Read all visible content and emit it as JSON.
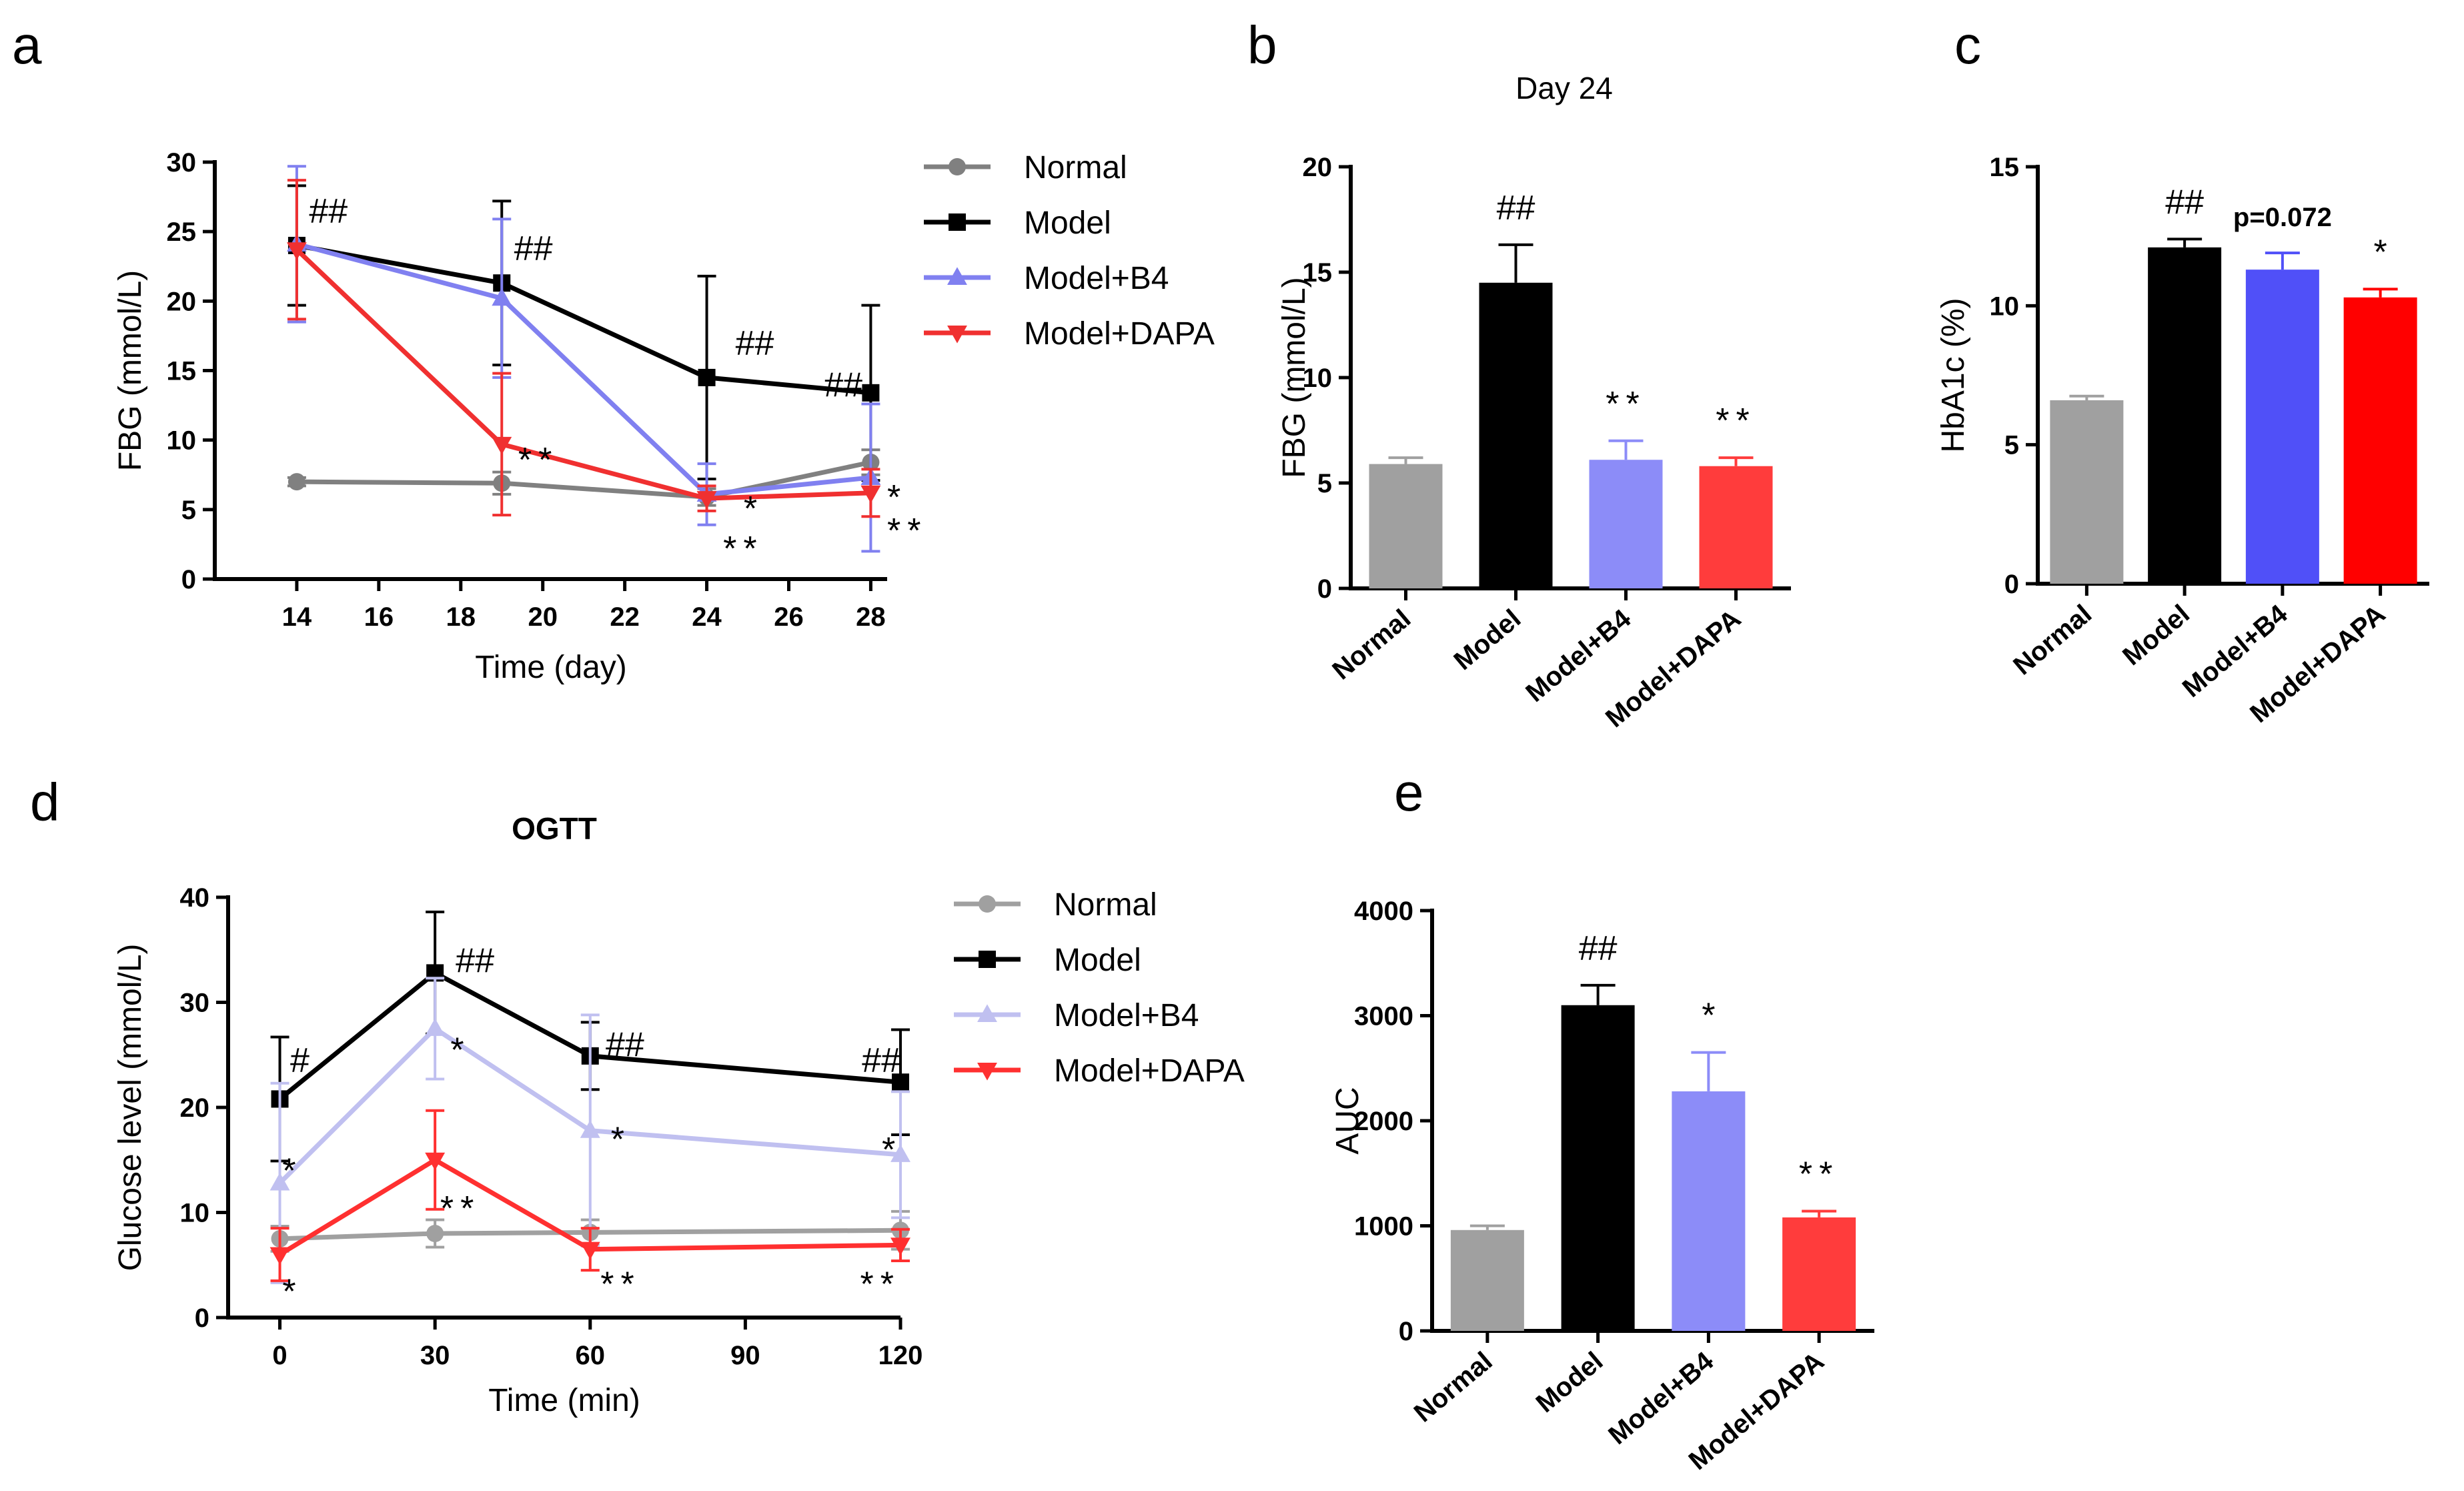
{
  "chart_data": [
    {
      "panel": "a",
      "type": "line",
      "title": "",
      "xlabel": "Time (day)",
      "ylabel": "FBG (mmol/L)",
      "x": [
        14,
        19,
        24,
        28
      ],
      "xlim": [
        12,
        28.4
      ],
      "ylim": [
        0,
        30
      ],
      "xticks": [
        14,
        16,
        18,
        20,
        22,
        24,
        26,
        28
      ],
      "yticks": [
        0,
        5,
        10,
        15,
        20,
        25,
        30
      ],
      "legend": "top-right",
      "series": [
        {
          "name": "Normal",
          "color": "#808080",
          "marker": "circle",
          "values": [
            7.0,
            6.9,
            5.9,
            8.4
          ],
          "err": [
            0.3,
            0.8,
            0.6,
            0.9
          ]
        },
        {
          "name": "Model",
          "color": "#000000",
          "marker": "square",
          "values": [
            24.0,
            21.3,
            14.5,
            13.4
          ],
          "err": [
            4.3,
            5.9,
            7.3,
            6.3
          ]
        },
        {
          "name": "Model+B4",
          "color": "#8080f0",
          "marker": "triangle-up",
          "values": [
            24.1,
            20.2,
            6.1,
            7.3
          ],
          "err": [
            5.6,
            5.7,
            2.2,
            5.3
          ]
        },
        {
          "name": "Model+DAPA",
          "color": "#f03030",
          "marker": "triangle-down",
          "values": [
            23.7,
            9.7,
            5.8,
            6.2
          ],
          "err": [
            5.0,
            5.1,
            0.9,
            1.7
          ]
        }
      ],
      "annotations": [
        {
          "text": "##",
          "x": 14,
          "y": 26.5,
          "anchor": "start",
          "dx": 0.3
        },
        {
          "text": "##",
          "x": 19,
          "y": 23.8,
          "anchor": "start",
          "dx": 0.3
        },
        {
          "text": "##",
          "x": 24,
          "y": 17.0,
          "anchor": "start",
          "dx": 0.7
        },
        {
          "text": "##",
          "x": 28,
          "y": 14.0,
          "anchor": "end",
          "dx": -0.2
        },
        {
          "text": "**",
          "x": 19,
          "y": 8.6,
          "anchor": "start",
          "dx": 0.4
        },
        {
          "text": "*",
          "x": 24,
          "y": 5.1,
          "anchor": "start",
          "dx": 0.9
        },
        {
          "text": "**",
          "x": 24,
          "y": 2.2,
          "anchor": "start",
          "dx": 0.4
        },
        {
          "text": "*",
          "x": 28,
          "y": 5.9,
          "anchor": "start",
          "dx": 0.4
        },
        {
          "text": "**",
          "x": 28,
          "y": 3.5,
          "anchor": "start",
          "dx": 0.4
        }
      ]
    },
    {
      "panel": "b",
      "type": "bar",
      "title": "Day 24",
      "xlabel": "",
      "ylabel": "FBG (mmol/L)",
      "ylim": [
        0,
        20
      ],
      "yticks": [
        0,
        5,
        10,
        15,
        20
      ],
      "categories": [
        "Normal",
        "Model",
        "Model+B4",
        "Model+DAPA"
      ],
      "values": [
        5.9,
        14.5,
        6.1,
        5.8
      ],
      "err": [
        0.3,
        1.8,
        0.9,
        0.4
      ],
      "colors": [
        "#a0a0a0",
        "#000000",
        "#8c8cf8",
        "#ff3c3c"
      ],
      "annotations": [
        "",
        "##",
        "**",
        "**"
      ]
    },
    {
      "panel": "c",
      "type": "bar",
      "title": "",
      "xlabel": "",
      "ylabel": "HbA1c (%)",
      "ylim": [
        0,
        15
      ],
      "yticks": [
        0,
        5,
        10,
        15
      ],
      "categories": [
        "Normal",
        "Model",
        "Model+B4",
        "Model+DAPA"
      ],
      "values": [
        6.6,
        12.1,
        11.3,
        10.3
      ],
      "err": [
        0.15,
        0.3,
        0.6,
        0.3
      ],
      "colors": [
        "#a0a0a0",
        "#000000",
        "#5050f8",
        "#ff0000"
      ],
      "annotations": [
        "",
        "##",
        "p=0.072",
        "*"
      ]
    },
    {
      "panel": "d",
      "type": "line",
      "title": "OGTT",
      "xlabel": "Time (min)",
      "ylabel": "Glucose level (mmol/L)",
      "x": [
        0,
        30,
        60,
        120
      ],
      "xlim": [
        -10,
        120
      ],
      "ylim": [
        0,
        40
      ],
      "xticks": [
        0,
        30,
        60,
        90,
        120
      ],
      "yticks": [
        0,
        10,
        20,
        30,
        40
      ],
      "legend": "top-right",
      "series": [
        {
          "name": "Normal",
          "color": "#a0a0a0",
          "marker": "circle",
          "values": [
            7.5,
            8.0,
            8.1,
            8.3
          ],
          "err": [
            1.2,
            1.3,
            1.2,
            1.8
          ]
        },
        {
          "name": "Model",
          "color": "#000000",
          "marker": "square",
          "values": [
            20.8,
            32.8,
            24.9,
            22.4
          ],
          "err": [
            5.9,
            5.8,
            3.2,
            5.0
          ]
        },
        {
          "name": "Model+B4",
          "color": "#c0c0f0",
          "marker": "triangle-up",
          "values": [
            12.8,
            27.5,
            17.8,
            15.5
          ],
          "err": [
            9.5,
            4.8,
            11.0,
            6.0
          ]
        },
        {
          "name": "Model+DAPA",
          "color": "#ff3030",
          "marker": "triangle-down",
          "values": [
            6.0,
            15.0,
            6.5,
            6.9
          ],
          "err": [
            2.5,
            4.7,
            2.0,
            1.5
          ]
        }
      ],
      "annotations": [
        {
          "text": "#",
          "x": 0,
          "y": 24.5,
          "anchor": "start",
          "dx": 2
        },
        {
          "text": "##",
          "x": 30,
          "y": 34.0,
          "anchor": "start",
          "dx": 4
        },
        {
          "text": "##",
          "x": 60,
          "y": 26.0,
          "anchor": "start",
          "dx": 3
        },
        {
          "text": "##",
          "x": 120,
          "y": 24.5,
          "anchor": "end",
          "dx": 0
        },
        {
          "text": "*",
          "x": 0,
          "y": 14.0,
          "anchor": "start",
          "dx": 0.5
        },
        {
          "text": "*",
          "x": 30,
          "y": 25.5,
          "anchor": "start",
          "dx": 3
        },
        {
          "text": "*",
          "x": 60,
          "y": 17.0,
          "anchor": "start",
          "dx": 4
        },
        {
          "text": "*",
          "x": 120,
          "y": 16.0,
          "anchor": "end",
          "dx": -1
        },
        {
          "text": "**",
          "x": 30,
          "y": 10.4,
          "anchor": "start",
          "dx": 1
        },
        {
          "text": "*",
          "x": 0,
          "y": 2.5,
          "anchor": "start",
          "dx": 0.5
        },
        {
          "text": "**",
          "x": 60,
          "y": 3.2,
          "anchor": "start",
          "dx": 2
        },
        {
          "text": "**",
          "x": 120,
          "y": 3.2,
          "anchor": "end",
          "dx": 0
        }
      ]
    },
    {
      "panel": "e",
      "type": "bar",
      "title": "",
      "xlabel": "",
      "ylabel": "AUC",
      "ylim": [
        0,
        4000
      ],
      "yticks": [
        0,
        1000,
        2000,
        3000,
        4000
      ],
      "categories": [
        "Normal",
        "Model",
        "Model+B4",
        "Model+DAPA"
      ],
      "values": [
        960,
        3100,
        2280,
        1080
      ],
      "err": [
        40,
        190,
        370,
        60
      ],
      "colors": [
        "#a0a0a0",
        "#000000",
        "#8c8cf8",
        "#ff3c3c"
      ],
      "annotations": [
        "",
        "##",
        "*",
        "**"
      ]
    }
  ]
}
